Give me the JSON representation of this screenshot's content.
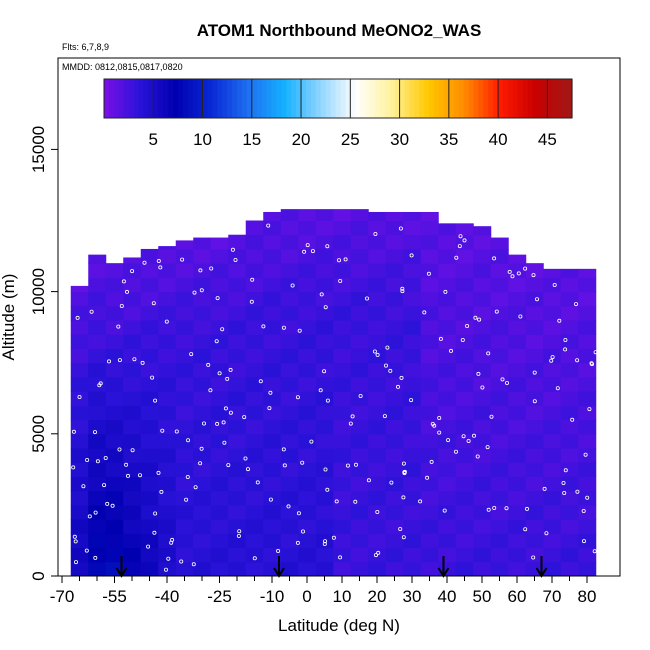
{
  "chart_data": {
    "type": "heatmap",
    "title": "ATOM1 Northbound MeONO2_WAS",
    "subtitle_lines": [
      "Flts: 6,7,8,9",
      "MMDD: 0812,0815,0817,0820"
    ],
    "xlabel": "Latitude (deg N)",
    "ylabel": "Altitude (m)",
    "xlim": [
      -70,
      83
    ],
    "ylim": [
      0,
      17500
    ],
    "x_ticks": [
      -70,
      -55,
      -40,
      -25,
      -10,
      0,
      10,
      20,
      30,
      40,
      50,
      60,
      70,
      80
    ],
    "x_tick_labels": [
      "-70",
      "-55",
      "-40",
      "-25",
      "-10",
      "0",
      "10",
      "20",
      "30",
      "40",
      "50",
      "60",
      "70",
      "80"
    ],
    "x_minor_step": 5,
    "y_ticks": [
      0,
      5000,
      10000,
      15000
    ],
    "y_tick_labels": [
      "0",
      "5000",
      "10000",
      "15000"
    ],
    "colorbar": {
      "min": 0,
      "max": 47.5,
      "ticks": [
        5,
        10,
        15,
        20,
        25,
        30,
        35,
        40,
        45
      ],
      "tick_labels": [
        "5",
        "10",
        "15",
        "20",
        "25",
        "30",
        "35",
        "40",
        "45"
      ],
      "colors": [
        "#7a10e8",
        "#2a12d8",
        "#0000b0",
        "#0a2ad6",
        "#1e6ff0",
        "#14b0ff",
        "#8fd4ff",
        "#ffffff",
        "#fff19a",
        "#ffc800",
        "#ff8c00",
        "#ff1a00",
        "#c80000",
        "#a01818"
      ]
    },
    "arrow_latitudes": [
      -53,
      -8,
      39,
      67
    ],
    "grid": false,
    "columns": [
      {
        "lat": -65,
        "top": 10200,
        "base": 6,
        "upper": 3
      },
      {
        "lat": -60,
        "top": 11300,
        "base": 8,
        "upper": 3
      },
      {
        "lat": -55,
        "top": 11000,
        "base": 8,
        "upper": 3
      },
      {
        "lat": -50,
        "top": 11200,
        "base": 7,
        "upper": 3
      },
      {
        "lat": -45,
        "top": 11500,
        "base": 6,
        "upper": 3
      },
      {
        "lat": -40,
        "top": 11600,
        "base": 5,
        "upper": 3
      },
      {
        "lat": -35,
        "top": 11800,
        "base": 4,
        "upper": 3
      },
      {
        "lat": -30,
        "top": 11900,
        "base": 4,
        "upper": 3
      },
      {
        "lat": -25,
        "top": 11900,
        "base": 4,
        "upper": 3
      },
      {
        "lat": -20,
        "top": 12000,
        "base": 4,
        "upper": 3
      },
      {
        "lat": -15,
        "top": 12500,
        "base": 4,
        "upper": 3
      },
      {
        "lat": -10,
        "top": 12800,
        "base": 4,
        "upper": 3
      },
      {
        "lat": -5,
        "top": 12900,
        "base": 4,
        "upper": 3
      },
      {
        "lat": 0,
        "top": 12900,
        "base": 4,
        "upper": 3
      },
      {
        "lat": 5,
        "top": 12900,
        "base": 4,
        "upper": 3
      },
      {
        "lat": 10,
        "top": 12900,
        "base": 3,
        "upper": 3
      },
      {
        "lat": 15,
        "top": 12900,
        "base": 3,
        "upper": 3
      },
      {
        "lat": 20,
        "top": 12800,
        "base": 3,
        "upper": 3
      },
      {
        "lat": 25,
        "top": 12800,
        "base": 3,
        "upper": 3
      },
      {
        "lat": 30,
        "top": 12800,
        "base": 3,
        "upper": 3
      },
      {
        "lat": 35,
        "top": 12800,
        "base": 3,
        "upper": 2
      },
      {
        "lat": 40,
        "top": 12400,
        "base": 3,
        "upper": 2
      },
      {
        "lat": 45,
        "top": 12400,
        "base": 3,
        "upper": 2
      },
      {
        "lat": 50,
        "top": 12300,
        "base": 3,
        "upper": 2
      },
      {
        "lat": 55,
        "top": 11900,
        "base": 3,
        "upper": 2
      },
      {
        "lat": 60,
        "top": 11300,
        "base": 3,
        "upper": 2
      },
      {
        "lat": 65,
        "top": 11000,
        "base": 3,
        "upper": 2
      },
      {
        "lat": 70,
        "top": 10800,
        "base": 3,
        "upper": 2
      },
      {
        "lat": 75,
        "top": 10800,
        "base": 3,
        "upper": 2
      },
      {
        "lat": 80,
        "top": 10800,
        "base": 3,
        "upper": 2
      }
    ]
  }
}
